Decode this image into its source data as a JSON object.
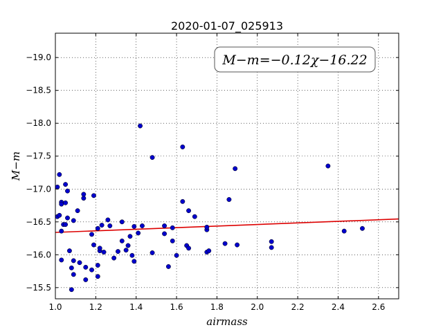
{
  "chart_data": {
    "type": "scatter",
    "title": "2020-01-07_025913",
    "xlabel": "airmass",
    "ylabel": "M−m",
    "annotation": "M−m=−0.12χ−16.22",
    "xlim": [
      1.0,
      2.7
    ],
    "ylim": [
      -19.37,
      -15.33
    ],
    "y_inverted": true,
    "grid": true,
    "xticks": [
      1.0,
      1.2,
      1.4,
      1.6,
      1.8,
      2.0,
      2.2,
      2.4,
      2.6
    ],
    "xtick_labels": [
      "1.0",
      "1.2",
      "1.4",
      "1.6",
      "1.8",
      "2.0",
      "2.2",
      "2.4",
      "2.6"
    ],
    "yticks": [
      -15.5,
      -16.0,
      -16.5,
      -17.0,
      -17.5,
      -18.0,
      -18.5,
      -19.0
    ],
    "ytick_labels": [
      "−15.5",
      "−16.0",
      "−16.5",
      "−17.0",
      "−17.5",
      "−18.0",
      "−18.5",
      "−19.0"
    ],
    "fit": {
      "slope": -0.12,
      "intercept": -16.22
    },
    "colors": {
      "points": "#0000cc",
      "fit": "#dd0000"
    },
    "points": [
      [
        1.01,
        -16.58
      ],
      [
        1.01,
        -17.03
      ],
      [
        1.02,
        -17.22
      ],
      [
        1.02,
        -16.6
      ],
      [
        1.03,
        -16.8
      ],
      [
        1.03,
        -16.77
      ],
      [
        1.03,
        -16.36
      ],
      [
        1.03,
        -15.92
      ],
      [
        1.04,
        -16.46
      ],
      [
        1.05,
        -16.46
      ],
      [
        1.05,
        -16.79
      ],
      [
        1.05,
        -17.07
      ],
      [
        1.06,
        -16.97
      ],
      [
        1.06,
        -16.56
      ],
      [
        1.07,
        -16.06
      ],
      [
        1.08,
        -15.47
      ],
      [
        1.08,
        -15.8
      ],
      [
        1.09,
        -15.91
      ],
      [
        1.09,
        -16.52
      ],
      [
        1.09,
        -15.7
      ],
      [
        1.11,
        -16.67
      ],
      [
        1.12,
        -15.88
      ],
      [
        1.14,
        -16.86
      ],
      [
        1.14,
        -16.92
      ],
      [
        1.15,
        -15.62
      ],
      [
        1.15,
        -15.81
      ],
      [
        1.18,
        -15.77
      ],
      [
        1.18,
        -16.31
      ],
      [
        1.19,
        -16.15
      ],
      [
        1.19,
        -16.9
      ],
      [
        1.21,
        -15.67
      ],
      [
        1.21,
        -15.84
      ],
      [
        1.21,
        -16.4
      ],
      [
        1.22,
        -16.06
      ],
      [
        1.22,
        -16.1
      ],
      [
        1.23,
        -16.45
      ],
      [
        1.24,
        -16.04
      ],
      [
        1.26,
        -16.53
      ],
      [
        1.27,
        -16.44
      ],
      [
        1.29,
        -15.95
      ],
      [
        1.31,
        -16.05
      ],
      [
        1.33,
        -16.5
      ],
      [
        1.33,
        -16.21
      ],
      [
        1.35,
        -16.07
      ],
      [
        1.36,
        -16.14
      ],
      [
        1.37,
        -16.28
      ],
      [
        1.38,
        -15.99
      ],
      [
        1.39,
        -15.9
      ],
      [
        1.39,
        -16.43
      ],
      [
        1.41,
        -16.33
      ],
      [
        1.42,
        -17.96
      ],
      [
        1.43,
        -16.44
      ],
      [
        1.48,
        -16.03
      ],
      [
        1.48,
        -17.48
      ],
      [
        1.54,
        -16.44
      ],
      [
        1.54,
        -16.32
      ],
      [
        1.56,
        -15.82
      ],
      [
        1.58,
        -16.41
      ],
      [
        1.58,
        -16.21
      ],
      [
        1.6,
        -15.99
      ],
      [
        1.63,
        -16.81
      ],
      [
        1.63,
        -17.64
      ],
      [
        1.65,
        -16.14
      ],
      [
        1.66,
        -16.1
      ],
      [
        1.66,
        -16.67
      ],
      [
        1.69,
        -16.58
      ],
      [
        1.75,
        -16.04
      ],
      [
        1.75,
        -16.38
      ],
      [
        1.75,
        -16.42
      ],
      [
        1.76,
        -16.06
      ],
      [
        1.84,
        -16.17
      ],
      [
        1.86,
        -16.84
      ],
      [
        1.89,
        -17.31
      ],
      [
        1.9,
        -16.15
      ],
      [
        2.07,
        -16.11
      ],
      [
        2.07,
        -16.2
      ],
      [
        2.35,
        -17.35
      ],
      [
        2.43,
        -16.36
      ],
      [
        2.52,
        -16.4
      ]
    ]
  }
}
